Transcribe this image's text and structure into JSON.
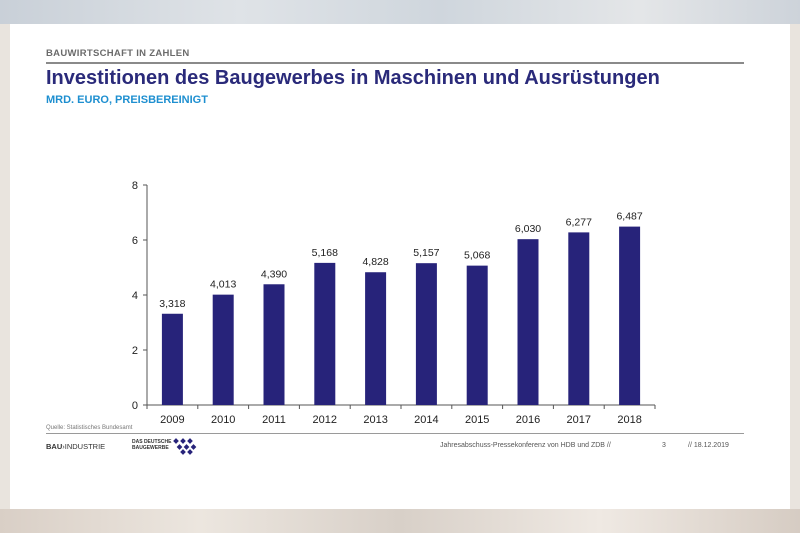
{
  "header": {
    "section_label": "BAUWIRTSCHAFT IN ZAHLEN",
    "title": "Investitionen des Baugewerbes in Maschinen und Ausrüstungen",
    "subtitle": "MRD. EURO, PREISBEREINIGT"
  },
  "footer": {
    "source": "Quelle: Statistisches Bundesamt",
    "logo_bau_strong": "BAU",
    "logo_bau_rest": "INDUSTRIE",
    "logo_zdb_line1": "DAS DEUTSCHE",
    "logo_zdb_line2": "BAUGEWERBE",
    "conference": "Jahresabschuss-Pressekonferenz von HDB und ZDB //",
    "page": "3",
    "date": "// 18.12.2019"
  },
  "colors": {
    "title": "#2a2a7a",
    "subtitle": "#1e8fd0",
    "bar": "#27237a"
  },
  "chart_data": {
    "type": "bar",
    "categories": [
      "2009",
      "2010",
      "2011",
      "2012",
      "2013",
      "2014",
      "2015",
      "2016",
      "2017",
      "2018"
    ],
    "values": [
      3.318,
      4.013,
      4.39,
      5.168,
      4.828,
      5.157,
      5.068,
      6.03,
      6.277,
      6.487
    ],
    "value_labels": [
      "3,318",
      "4,013",
      "4,390",
      "5,168",
      "4,828",
      "5,157",
      "5,068",
      "6,030",
      "6,277",
      "6,487"
    ],
    "yticks": [
      "0",
      "2",
      "4",
      "6",
      "8"
    ],
    "ylim": [
      0,
      8
    ],
    "title": "",
    "xlabel": "",
    "ylabel": "",
    "grid": false,
    "legend": false
  }
}
